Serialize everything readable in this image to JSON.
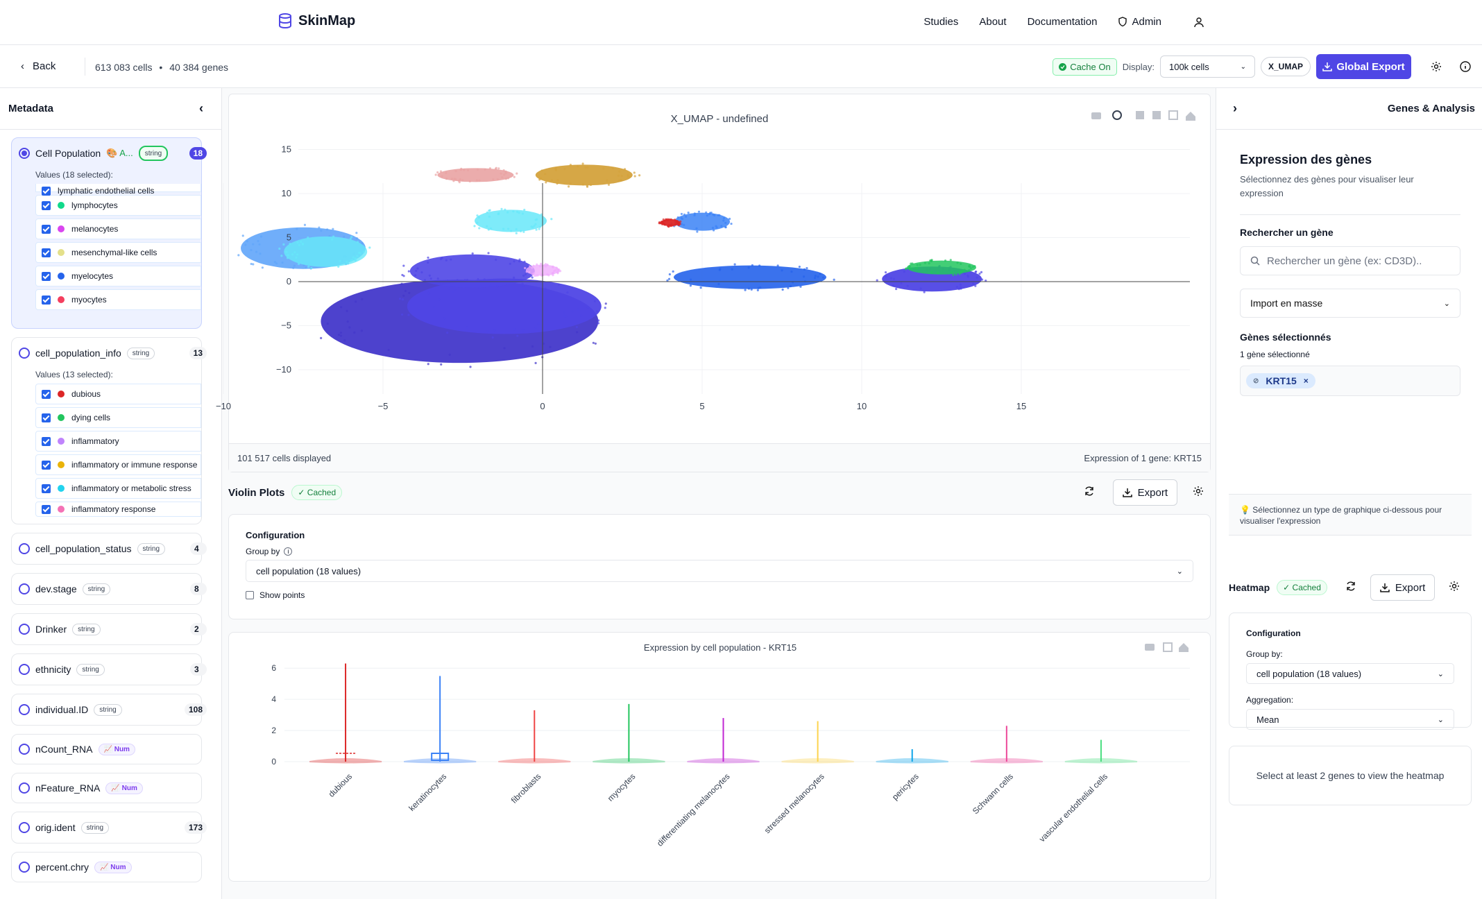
{
  "app": {
    "name": "SkinMap"
  },
  "nav": {
    "studies": "Studies",
    "about": "About",
    "documentation": "Documentation",
    "admin": "Admin"
  },
  "toolbar": {
    "back": "Back",
    "cells": "613 083 cells",
    "genes": "40 384 genes",
    "separator": "•",
    "cache": "Cache On",
    "display_label": "Display:",
    "display_value": "100k cells",
    "embedding": "X_UMAP",
    "export": "Global Export"
  },
  "metadata": {
    "title": "Metadata",
    "fields": [
      {
        "name": "Cell Population",
        "emoji_label": "🎨 A...",
        "type": "string",
        "count": "18",
        "values_label": "Values (18 selected):",
        "values": [
          {
            "label": "lymphatic endothelial cells",
            "color": "#3b82f6"
          },
          {
            "label": "lymphocytes",
            "color": "#10d98a"
          },
          {
            "label": "melanocytes",
            "color": "#d946ef"
          },
          {
            "label": "mesenchymal-like cells",
            "color": "#e4e08a"
          },
          {
            "label": "myelocytes",
            "color": "#2563eb"
          },
          {
            "label": "myocytes",
            "color": "#f43f5e"
          }
        ]
      },
      {
        "name": "cell_population_info",
        "type": "string",
        "count": "13",
        "values_label": "Values (13 selected):",
        "values": [
          {
            "label": "dubious",
            "color": "#dc2626"
          },
          {
            "label": "dying cells",
            "color": "#22c55e"
          },
          {
            "label": "inflammatory",
            "color": "#c084fc"
          },
          {
            "label": "inflammatory or immune response",
            "color": "#eab308"
          },
          {
            "label": "inflammatory or metabolic stress",
            "color": "#22d3ee"
          },
          {
            "label": "inflammatory response",
            "color": "#f472b6"
          }
        ]
      },
      {
        "name": "cell_population_status",
        "type": "string",
        "count": "4"
      },
      {
        "name": "dev.stage",
        "type": "string",
        "count": "8"
      },
      {
        "name": "Drinker",
        "type": "string",
        "count": "2"
      },
      {
        "name": "ethnicity",
        "type": "string",
        "count": "3"
      },
      {
        "name": "individual.ID",
        "type": "string",
        "count": "108"
      },
      {
        "name": "nCount_RNA",
        "type": "📈 Num",
        "count": ""
      },
      {
        "name": "nFeature_RNA",
        "type": "📈 Num",
        "count": ""
      },
      {
        "name": "orig.ident",
        "type": "string",
        "count": "173"
      },
      {
        "name": "percent.chry",
        "type": "📈 Num",
        "count": ""
      }
    ]
  },
  "umap": {
    "title": "X_UMAP  - undefined",
    "cells_displayed": "101 517 cells displayed",
    "expression_note": "Expression of 1 gene: KRT15",
    "x_ticks": [
      "−10",
      "−5",
      "0",
      "5",
      "10",
      "15"
    ],
    "y_ticks": [
      "15",
      "10",
      "5",
      "0",
      "−5",
      "−10"
    ]
  },
  "violin": {
    "title": "Violin Plots",
    "cached": "✓ Cached",
    "export": "Export",
    "config_title": "Configuration",
    "group_by_label": "Group by",
    "group_by_value": "cell population (18 values)",
    "show_points": "Show points",
    "plot_title": "Expression by cell population - KRT15"
  },
  "chart_data": {
    "type": "violin",
    "title": "Expression by cell population - KRT15",
    "categories": [
      "dubious",
      "keratinocytes",
      "fibroblasts",
      "myocytes",
      "differentiating melanocytes",
      "stressed melanocytes",
      "pericytes",
      "Schwann cells",
      "vascular endothelial cells"
    ],
    "max_values": [
      6.3,
      5.5,
      3.3,
      3.7,
      2.8,
      2.6,
      0.8,
      2.3,
      1.4
    ],
    "colors": [
      "#dc2626",
      "#3b82f6",
      "#ef4444",
      "#22c55e",
      "#c026d3",
      "#fcd34d",
      "#0ea5e9",
      "#ec4899",
      "#4ade80"
    ],
    "y_ticks": [
      "0",
      "2",
      "4",
      "6"
    ],
    "ylim": [
      0,
      6.5
    ]
  },
  "right": {
    "title": "Genes & Analysis",
    "expr_title": "Expression des gènes",
    "expr_desc": "Sélectionnez des gènes pour visualiser leur expression",
    "search_label": "Rechercher un gène",
    "search_placeholder": "Rechercher un gène (ex: CD3D)..",
    "bulk_import": "Import en masse",
    "selected_title": "Gènes sélectionnés",
    "selected_count": "1 gène sélectionné",
    "gene": "KRT15",
    "hint": "💡 Sélectionnez un type de graphique ci-dessous pour visualiser l'expression",
    "heatmap_title": "Heatmap",
    "heatmap_cached": "✓ Cached",
    "heatmap_export": "Export",
    "hm_config": "Configuration",
    "hm_group_label": "Group by:",
    "hm_group_value": "cell population (18 values)",
    "hm_agg_label": "Aggregation:",
    "hm_agg_value": "Mean",
    "hm_empty": "Select at least 2 genes to view the heatmap"
  }
}
